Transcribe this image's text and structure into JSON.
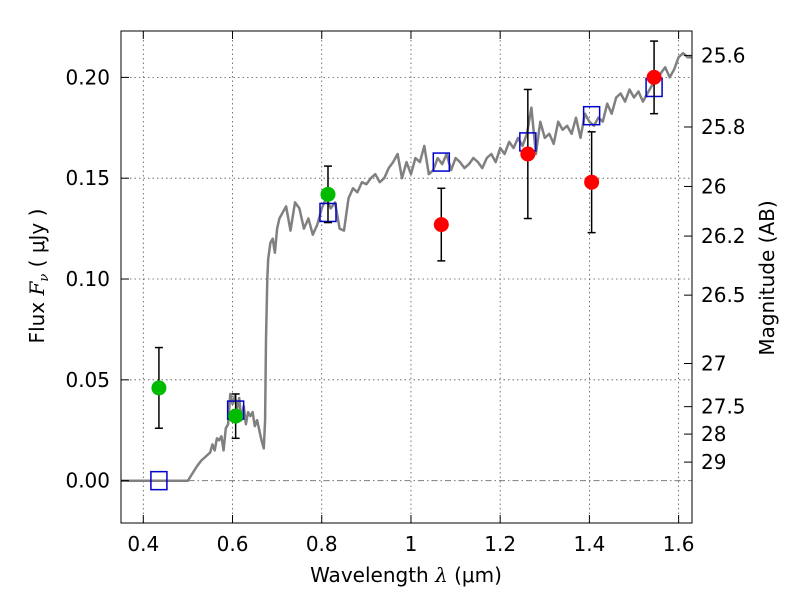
{
  "chart_data": {
    "type": "scatter",
    "xlabel": {
      "pre": "Wavelength ",
      "lambda": "λ",
      "units": " (μm)"
    },
    "ylabel": {
      "pre": "Flux  ",
      "F": "F",
      "nu": "ν",
      "units": " ( μJy )"
    },
    "y2label": "Magnitude (AB)",
    "xlim": [
      0.35,
      1.63
    ],
    "ylim": [
      -0.021,
      0.223
    ],
    "xticks": [
      0.4,
      0.6,
      0.8,
      1.0,
      1.2,
      1.4,
      1.6
    ],
    "xtick_labels": [
      "0.4",
      "0.6",
      "0.8",
      "1",
      "1.2",
      "1.4",
      "1.6"
    ],
    "yticks": [
      0.0,
      0.05,
      0.1,
      0.15,
      0.2
    ],
    "ytick_labels": [
      "0.00",
      "0.05",
      "0.10",
      "0.15",
      "0.20"
    ],
    "y2ticks": [
      {
        "label": "25.6",
        "flux": 0.2109
      },
      {
        "label": "25.8",
        "flux": 0.1754
      },
      {
        "label": "26",
        "flux": 0.1459
      },
      {
        "label": "26.2",
        "flux": 0.1213
      },
      {
        "label": "26.5",
        "flux": 0.092
      },
      {
        "label": "27",
        "flux": 0.0581
      },
      {
        "label": "27.5",
        "flux": 0.0367
      },
      {
        "label": "28",
        "flux": 0.0231
      },
      {
        "label": "29",
        "flux": 0.0092
      }
    ],
    "grid": true,
    "colors": {
      "model_line": "#808080",
      "zero_line": "#808080",
      "green": "#00bb00",
      "red": "#ff0000",
      "box": "#0000cc",
      "errorbar": "#000000",
      "grid": "#555555"
    },
    "model_spectrum": {
      "x": [
        0.35,
        0.49,
        0.5,
        0.52,
        0.53,
        0.54,
        0.55,
        0.555,
        0.56,
        0.565,
        0.57,
        0.575,
        0.58,
        0.585,
        0.59,
        0.595,
        0.6,
        0.605,
        0.61,
        0.615,
        0.62,
        0.625,
        0.63,
        0.635,
        0.64,
        0.645,
        0.65,
        0.655,
        0.66,
        0.665,
        0.67,
        0.673,
        0.675,
        0.678,
        0.68,
        0.685,
        0.69,
        0.695,
        0.7,
        0.705,
        0.71,
        0.72,
        0.73,
        0.74,
        0.75,
        0.76,
        0.77,
        0.78,
        0.79,
        0.8,
        0.81,
        0.82,
        0.83,
        0.84,
        0.85,
        0.86,
        0.87,
        0.88,
        0.89,
        0.9,
        0.91,
        0.92,
        0.93,
        0.94,
        0.95,
        0.96,
        0.97,
        0.98,
        0.99,
        1.0,
        1.01,
        1.02,
        1.03,
        1.04,
        1.05,
        1.06,
        1.07,
        1.08,
        1.09,
        1.1,
        1.11,
        1.12,
        1.13,
        1.14,
        1.15,
        1.16,
        1.17,
        1.18,
        1.19,
        1.2,
        1.21,
        1.22,
        1.23,
        1.24,
        1.25,
        1.26,
        1.27,
        1.28,
        1.29,
        1.3,
        1.31,
        1.32,
        1.33,
        1.34,
        1.35,
        1.36,
        1.37,
        1.38,
        1.39,
        1.4,
        1.41,
        1.42,
        1.43,
        1.44,
        1.45,
        1.46,
        1.47,
        1.48,
        1.49,
        1.5,
        1.51,
        1.52,
        1.53,
        1.54,
        1.55,
        1.56,
        1.57,
        1.58,
        1.59,
        1.6,
        1.61,
        1.62,
        1.63
      ],
      "y": [
        0.0,
        0.0,
        0.0,
        0.007,
        0.01,
        0.012,
        0.014,
        0.018,
        0.015,
        0.021,
        0.02,
        0.022,
        0.015,
        0.026,
        0.028,
        0.043,
        0.038,
        0.042,
        0.035,
        0.041,
        0.03,
        0.037,
        0.028,
        0.034,
        0.032,
        0.034,
        0.027,
        0.03,
        0.025,
        0.02,
        0.016,
        0.03,
        0.07,
        0.1,
        0.11,
        0.118,
        0.12,
        0.113,
        0.125,
        0.13,
        0.132,
        0.136,
        0.124,
        0.138,
        0.135,
        0.125,
        0.13,
        0.122,
        0.127,
        0.135,
        0.14,
        0.135,
        0.138,
        0.125,
        0.124,
        0.14,
        0.145,
        0.143,
        0.148,
        0.147,
        0.15,
        0.152,
        0.148,
        0.15,
        0.155,
        0.158,
        0.162,
        0.15,
        0.158,
        0.152,
        0.16,
        0.158,
        0.166,
        0.152,
        0.154,
        0.16,
        0.157,
        0.162,
        0.154,
        0.16,
        0.158,
        0.155,
        0.157,
        0.16,
        0.158,
        0.155,
        0.16,
        0.162,
        0.158,
        0.165,
        0.162,
        0.168,
        0.165,
        0.17,
        0.166,
        0.172,
        0.185,
        0.162,
        0.178,
        0.17,
        0.172,
        0.167,
        0.178,
        0.174,
        0.176,
        0.172,
        0.18,
        0.17,
        0.182,
        0.178,
        0.176,
        0.18,
        0.178,
        0.187,
        0.182,
        0.19,
        0.192,
        0.188,
        0.194,
        0.19,
        0.193,
        0.188,
        0.192,
        0.196,
        0.198,
        0.202,
        0.205,
        0.2,
        0.204,
        0.21,
        0.212,
        0.21,
        0.21
      ]
    },
    "model_bands": [
      {
        "x": 0.435,
        "y": 0.0
      },
      {
        "x": 0.607,
        "y": 0.035
      },
      {
        "x": 0.814,
        "y": 0.133
      },
      {
        "x": 1.068,
        "y": 0.158
      },
      {
        "x": 1.262,
        "y": 0.168
      },
      {
        "x": 1.405,
        "y": 0.181
      },
      {
        "x": 1.545,
        "y": 0.195
      }
    ],
    "observed_green": [
      {
        "x": 0.435,
        "y": 0.046,
        "err": 0.02
      },
      {
        "x": 0.607,
        "y": 0.032,
        "err": 0.011
      },
      {
        "x": 0.814,
        "y": 0.142,
        "err": 0.014
      }
    ],
    "observed_red": [
      {
        "x": 1.068,
        "y": 0.127,
        "err": 0.018
      },
      {
        "x": 1.262,
        "y": 0.162,
        "err": 0.032
      },
      {
        "x": 1.405,
        "y": 0.148,
        "err": 0.025
      },
      {
        "x": 1.545,
        "y": 0.2,
        "err": 0.018
      }
    ]
  }
}
